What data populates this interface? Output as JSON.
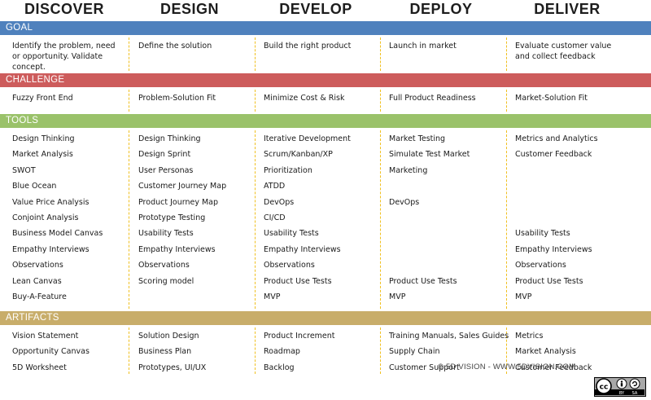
{
  "phases": [
    "DISCOVER",
    "DESIGN",
    "DEVELOP",
    "DEPLOY",
    "DELIVER"
  ],
  "bands": {
    "goal": {
      "label": "GOAL",
      "color": "#4f81bd"
    },
    "challenge": {
      "label": "CHALLENGE",
      "color": "#cd5c5c"
    },
    "tools": {
      "label": "TOOLS",
      "color": "#9ac26a"
    },
    "artifacts": {
      "label": "ARTIFACTS",
      "color": "#c8ad6a"
    }
  },
  "goal": [
    "Identify the problem, need or opportunity. Validate concept.",
    "Define the solution",
    "Build the right product",
    "Launch in market",
    "Evaluate customer value and collect feedback"
  ],
  "challenge": [
    "Fuzzy Front End",
    "Problem-Solution Fit",
    "Minimize Cost & Risk",
    "Full Product Readiness",
    "Market-Solution Fit"
  ],
  "tools": [
    [
      "Design Thinking",
      "Design Thinking",
      "Iterative Development",
      "Market Testing",
      "Metrics and Analytics"
    ],
    [
      "Market Analysis",
      "Design Sprint",
      "Scrum/Kanban/XP",
      "Simulate Test Market",
      "Customer Feedback"
    ],
    [
      "SWOT",
      "User Personas",
      "Prioritization",
      "Marketing",
      ""
    ],
    [
      "Blue Ocean",
      "Customer Journey Map",
      "ATDD",
      "",
      ""
    ],
    [
      "Value Price Analysis",
      "Product Journey Map",
      "DevOps",
      "DevOps",
      ""
    ],
    [
      "Conjoint Analysis",
      "Prototype Testing",
      "CI/CD",
      "",
      ""
    ],
    [
      "Business Model Canvas",
      "Usability Tests",
      "Usability Tests",
      "",
      "Usability Tests"
    ],
    [
      "Empathy Interviews",
      "Empathy Interviews",
      "Empathy Interviews",
      "",
      "Empathy Interviews"
    ],
    [
      "Observations",
      "Observations",
      "Observations",
      "",
      "Observations"
    ],
    [
      "Lean Canvas",
      "Scoring model",
      "Product Use Tests",
      "Product Use Tests",
      "Product Use Tests"
    ],
    [
      "Buy-A-Feature",
      "",
      "MVP",
      "MVP",
      "MVP"
    ]
  ],
  "artifacts": [
    [
      "Vision Statement",
      "Solution Design",
      "Product Increment",
      "Training Manuals,  Sales Guides",
      "Metrics"
    ],
    [
      "Opportunity Canvas",
      "Business Plan",
      "Roadmap",
      "Supply Chain",
      "Market Analysis"
    ],
    [
      "5D Worksheet",
      "Prototypes, UI/UX",
      "Backlog",
      "Customer Support",
      "Customer Feedback"
    ]
  ],
  "footer": "© 5D VISION - WWW.5DVISION.COM",
  "license_badge": {
    "by": "BY",
    "sa": "SA",
    "icon": "creative-commons-icon"
  }
}
